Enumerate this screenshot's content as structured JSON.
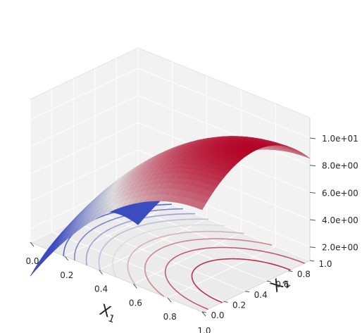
{
  "chart_data": {
    "type": "surface",
    "title": "",
    "xlabel": "X",
    "xlabel_sub": "1",
    "ylabel": "X",
    "ylabel_sub": "2",
    "zlabel": "",
    "xlim": [
      0,
      1
    ],
    "ylim": [
      0,
      1
    ],
    "zlim": [
      1,
      11.5
    ],
    "x_ticks": [
      "0.0",
      "0.2",
      "0.4",
      "0.6",
      "0.8",
      "1.0"
    ],
    "y_ticks": [
      "0.0",
      "0.2",
      "0.4",
      "0.6",
      "0.8",
      "1.0"
    ],
    "z_ticks": [
      "2.0e+00",
      "4.0e+00",
      "6.0e+00",
      "8.0e+00",
      "1.0e+01"
    ],
    "z_tick_values": [
      2,
      4,
      6,
      8,
      10
    ],
    "colormap": "coolwarm",
    "grid": true,
    "surface_function": "f(x1, x2) = 11 - 10*(x1 - 1)^2 - 10*(x2 - 0.5)^2",
    "surface_samples": {
      "x1": [
        0.0,
        0.25,
        0.5,
        0.75,
        1.0
      ],
      "x2": [
        0.0,
        0.25,
        0.5,
        0.75,
        1.0
      ],
      "z": [
        [
          -1.5,
          0.375,
          1.0,
          0.375,
          -1.5
        ],
        [
          2.875,
          4.75,
          5.375,
          4.75,
          2.875
        ],
        [
          6.0,
          7.875,
          8.5,
          7.875,
          6.0
        ],
        [
          7.875,
          9.75,
          10.375,
          9.75,
          7.875
        ],
        [
          8.5,
          10.375,
          11.0,
          10.375,
          8.5
        ]
      ]
    },
    "contour_floor_z": 1,
    "contour_levels": [
      2,
      3,
      4,
      5,
      6,
      7,
      8,
      9,
      10
    ],
    "colors": {
      "pane_light": "#f2f2f2",
      "pane_mid": "#ebebeb",
      "cool": "#3b4cc0",
      "neutral": "#dddddd",
      "warm": "#b40426"
    }
  }
}
